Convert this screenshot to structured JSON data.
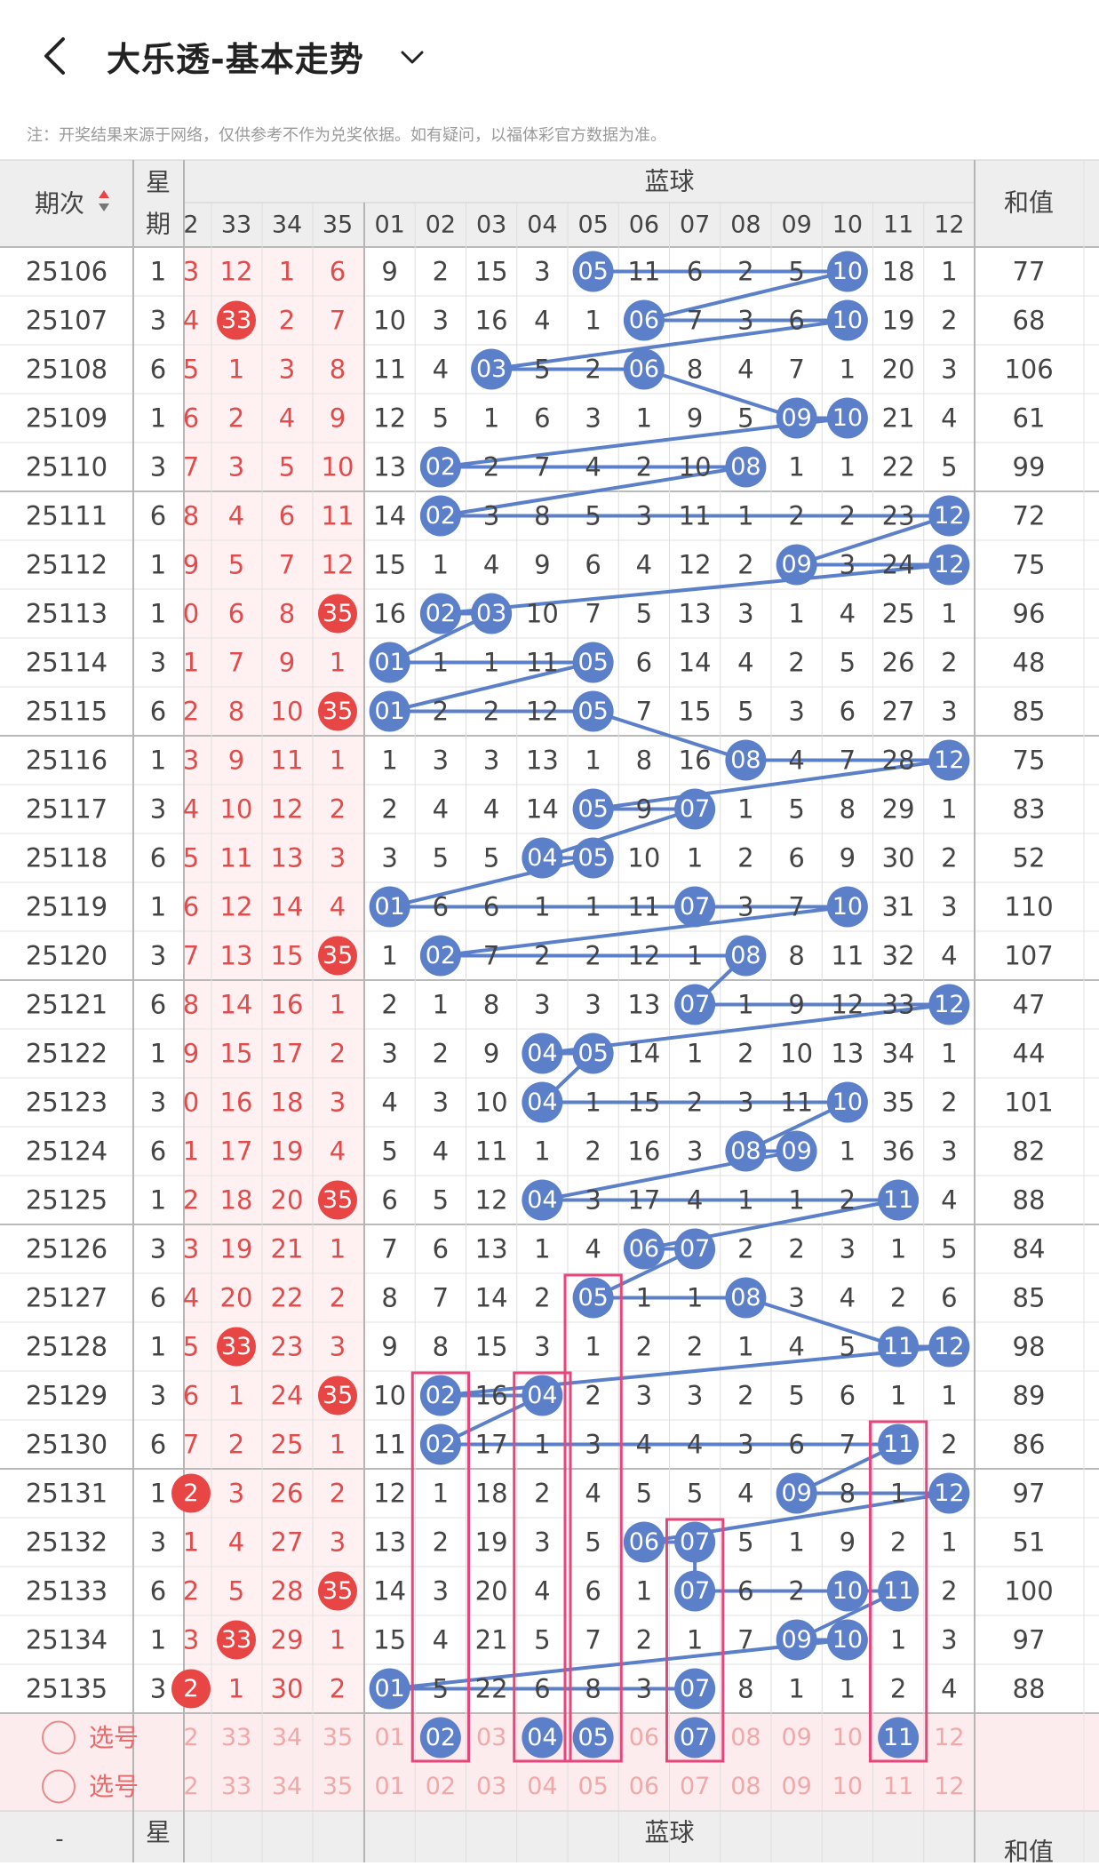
{
  "header": {
    "title": "大乐透-基本走势"
  },
  "notice": "注：开奖结果来源于网络，仅供参考不作为兑奖依据。如有疑问，以福体彩官方数据为准。",
  "table_headers": {
    "issue": "期次",
    "week_top": "星",
    "week_bottom": "期",
    "blue_group": "蓝球",
    "sum_label": "和值"
  },
  "front_col_labels": [
    "2",
    "33",
    "34",
    "35"
  ],
  "blue_col_labels": [
    "01",
    "02",
    "03",
    "04",
    "05",
    "06",
    "07",
    "08",
    "09",
    "10",
    "11",
    "12"
  ],
  "rows": [
    {
      "issue": "25106",
      "week": "1",
      "front": [
        "3",
        "12",
        "1",
        "6"
      ],
      "fhit": [
        0,
        0,
        0,
        0
      ],
      "blue": [
        "9",
        "2",
        "15",
        "3",
        "05",
        "11",
        "6",
        "2",
        "5",
        "10",
        "18",
        "1"
      ],
      "sum": "77"
    },
    {
      "issue": "25107",
      "week": "3",
      "front": [
        "4",
        "33",
        "2",
        "7"
      ],
      "fhit": [
        0,
        1,
        0,
        0
      ],
      "blue": [
        "10",
        "3",
        "16",
        "4",
        "1",
        "06",
        "7",
        "3",
        "6",
        "10",
        "19",
        "2"
      ],
      "sum": "68"
    },
    {
      "issue": "25108",
      "week": "6",
      "front": [
        "5",
        "1",
        "3",
        "8"
      ],
      "fhit": [
        0,
        0,
        0,
        0
      ],
      "blue": [
        "11",
        "4",
        "03",
        "5",
        "2",
        "06",
        "8",
        "4",
        "7",
        "1",
        "20",
        "3"
      ],
      "sum": "106"
    },
    {
      "issue": "25109",
      "week": "1",
      "front": [
        "6",
        "2",
        "4",
        "9"
      ],
      "fhit": [
        0,
        0,
        0,
        0
      ],
      "blue": [
        "12",
        "5",
        "1",
        "6",
        "3",
        "1",
        "9",
        "5",
        "09",
        "10",
        "21",
        "4"
      ],
      "sum": "61"
    },
    {
      "issue": "25110",
      "week": "3",
      "front": [
        "7",
        "3",
        "5",
        "10"
      ],
      "fhit": [
        0,
        0,
        0,
        0
      ],
      "blue": [
        "13",
        "02",
        "2",
        "7",
        "4",
        "2",
        "10",
        "08",
        "1",
        "1",
        "22",
        "5"
      ],
      "sum": "99"
    },
    {
      "issue": "25111",
      "week": "6",
      "front": [
        "8",
        "4",
        "6",
        "11"
      ],
      "fhit": [
        0,
        0,
        0,
        0
      ],
      "blue": [
        "14",
        "02",
        "3",
        "8",
        "5",
        "3",
        "11",
        "1",
        "2",
        "2",
        "23",
        "12"
      ],
      "sum": "72"
    },
    {
      "issue": "25112",
      "week": "1",
      "front": [
        "9",
        "5",
        "7",
        "12"
      ],
      "fhit": [
        0,
        0,
        0,
        0
      ],
      "blue": [
        "15",
        "1",
        "4",
        "9",
        "6",
        "4",
        "12",
        "2",
        "09",
        "3",
        "24",
        "12"
      ],
      "sum": "75"
    },
    {
      "issue": "25113",
      "week": "1",
      "front": [
        "0",
        "6",
        "8",
        "35"
      ],
      "fhit": [
        0,
        0,
        0,
        1
      ],
      "blue": [
        "16",
        "02",
        "03",
        "10",
        "7",
        "5",
        "13",
        "3",
        "1",
        "4",
        "25",
        "1"
      ],
      "sum": "96"
    },
    {
      "issue": "25114",
      "week": "3",
      "front": [
        "1",
        "7",
        "9",
        "1"
      ],
      "fhit": [
        0,
        0,
        0,
        0
      ],
      "blue": [
        "01",
        "1",
        "1",
        "11",
        "05",
        "6",
        "14",
        "4",
        "2",
        "5",
        "26",
        "2"
      ],
      "sum": "48"
    },
    {
      "issue": "25115",
      "week": "6",
      "front": [
        "2",
        "8",
        "10",
        "35"
      ],
      "fhit": [
        0,
        0,
        0,
        1
      ],
      "blue": [
        "01",
        "2",
        "2",
        "12",
        "05",
        "7",
        "15",
        "5",
        "3",
        "6",
        "27",
        "3"
      ],
      "sum": "85"
    },
    {
      "issue": "25116",
      "week": "1",
      "front": [
        "3",
        "9",
        "11",
        "1"
      ],
      "fhit": [
        0,
        0,
        0,
        0
      ],
      "blue": [
        "1",
        "3",
        "3",
        "13",
        "1",
        "8",
        "16",
        "08",
        "4",
        "7",
        "28",
        "12"
      ],
      "sum": "75"
    },
    {
      "issue": "25117",
      "week": "3",
      "front": [
        "4",
        "10",
        "12",
        "2"
      ],
      "fhit": [
        0,
        0,
        0,
        0
      ],
      "blue": [
        "2",
        "4",
        "4",
        "14",
        "05",
        "9",
        "07",
        "1",
        "5",
        "8",
        "29",
        "1"
      ],
      "sum": "83"
    },
    {
      "issue": "25118",
      "week": "6",
      "front": [
        "5",
        "11",
        "13",
        "3"
      ],
      "fhit": [
        0,
        0,
        0,
        0
      ],
      "blue": [
        "3",
        "5",
        "5",
        "04",
        "05",
        "10",
        "1",
        "2",
        "6",
        "9",
        "30",
        "2"
      ],
      "sum": "52"
    },
    {
      "issue": "25119",
      "week": "1",
      "front": [
        "6",
        "12",
        "14",
        "4"
      ],
      "fhit": [
        0,
        0,
        0,
        0
      ],
      "blue": [
        "01",
        "6",
        "6",
        "1",
        "1",
        "11",
        "07",
        "3",
        "7",
        "10",
        "31",
        "3"
      ],
      "sum": "110"
    },
    {
      "issue": "25120",
      "week": "3",
      "front": [
        "7",
        "13",
        "15",
        "35"
      ],
      "fhit": [
        0,
        0,
        0,
        1
      ],
      "blue": [
        "1",
        "02",
        "7",
        "2",
        "2",
        "12",
        "1",
        "08",
        "8",
        "11",
        "32",
        "4"
      ],
      "sum": "107"
    },
    {
      "issue": "25121",
      "week": "6",
      "front": [
        "8",
        "14",
        "16",
        "1"
      ],
      "fhit": [
        0,
        0,
        0,
        0
      ],
      "blue": [
        "2",
        "1",
        "8",
        "3",
        "3",
        "13",
        "07",
        "1",
        "9",
        "12",
        "33",
        "12"
      ],
      "sum": "47"
    },
    {
      "issue": "25122",
      "week": "1",
      "front": [
        "9",
        "15",
        "17",
        "2"
      ],
      "fhit": [
        0,
        0,
        0,
        0
      ],
      "blue": [
        "3",
        "2",
        "9",
        "04",
        "05",
        "14",
        "1",
        "2",
        "10",
        "13",
        "34",
        "1"
      ],
      "sum": "44"
    },
    {
      "issue": "25123",
      "week": "3",
      "front": [
        "0",
        "16",
        "18",
        "3"
      ],
      "fhit": [
        0,
        0,
        0,
        0
      ],
      "blue": [
        "4",
        "3",
        "10",
        "04",
        "1",
        "15",
        "2",
        "3",
        "11",
        "10",
        "35",
        "2"
      ],
      "sum": "101"
    },
    {
      "issue": "25124",
      "week": "6",
      "front": [
        "1",
        "17",
        "19",
        "4"
      ],
      "fhit": [
        0,
        0,
        0,
        0
      ],
      "blue": [
        "5",
        "4",
        "11",
        "1",
        "2",
        "16",
        "3",
        "08",
        "09",
        "1",
        "36",
        "3"
      ],
      "sum": "82"
    },
    {
      "issue": "25125",
      "week": "1",
      "front": [
        "2",
        "18",
        "20",
        "35"
      ],
      "fhit": [
        0,
        0,
        0,
        1
      ],
      "blue": [
        "6",
        "5",
        "12",
        "04",
        "3",
        "17",
        "4",
        "1",
        "1",
        "2",
        "11",
        "4"
      ],
      "sum": "88"
    },
    {
      "issue": "25126",
      "week": "3",
      "front": [
        "3",
        "19",
        "21",
        "1"
      ],
      "fhit": [
        0,
        0,
        0,
        0
      ],
      "blue": [
        "7",
        "6",
        "13",
        "1",
        "4",
        "06",
        "07",
        "2",
        "2",
        "3",
        "1",
        "5"
      ],
      "sum": "84"
    },
    {
      "issue": "25127",
      "week": "6",
      "front": [
        "4",
        "20",
        "22",
        "2"
      ],
      "fhit": [
        0,
        0,
        0,
        0
      ],
      "blue": [
        "8",
        "7",
        "14",
        "2",
        "05",
        "1",
        "1",
        "08",
        "3",
        "4",
        "2",
        "6"
      ],
      "sum": "85"
    },
    {
      "issue": "25128",
      "week": "1",
      "front": [
        "5",
        "33",
        "23",
        "3"
      ],
      "fhit": [
        0,
        1,
        0,
        0
      ],
      "blue": [
        "9",
        "8",
        "15",
        "3",
        "1",
        "2",
        "2",
        "1",
        "4",
        "5",
        "11",
        "12"
      ],
      "sum": "98"
    },
    {
      "issue": "25129",
      "week": "3",
      "front": [
        "6",
        "1",
        "24",
        "35"
      ],
      "fhit": [
        0,
        0,
        0,
        1
      ],
      "blue": [
        "10",
        "02",
        "16",
        "04",
        "2",
        "3",
        "3",
        "2",
        "5",
        "6",
        "1",
        "1"
      ],
      "sum": "89"
    },
    {
      "issue": "25130",
      "week": "6",
      "front": [
        "7",
        "2",
        "25",
        "1"
      ],
      "fhit": [
        0,
        0,
        0,
        0
      ],
      "blue": [
        "11",
        "02",
        "17",
        "1",
        "3",
        "4",
        "4",
        "3",
        "6",
        "7",
        "11",
        "2"
      ],
      "sum": "86"
    },
    {
      "issue": "25131",
      "week": "1",
      "front": [
        "2",
        "3",
        "26",
        "2"
      ],
      "fhit": [
        1,
        0,
        0,
        0
      ],
      "blue": [
        "12",
        "1",
        "18",
        "2",
        "4",
        "5",
        "5",
        "4",
        "09",
        "8",
        "1",
        "12"
      ],
      "sum": "97"
    },
    {
      "issue": "25132",
      "week": "3",
      "front": [
        "1",
        "4",
        "27",
        "3"
      ],
      "fhit": [
        0,
        0,
        0,
        0
      ],
      "blue": [
        "13",
        "2",
        "19",
        "3",
        "5",
        "06",
        "07",
        "5",
        "1",
        "9",
        "2",
        "1"
      ],
      "sum": "51"
    },
    {
      "issue": "25133",
      "week": "6",
      "front": [
        "2",
        "5",
        "28",
        "35"
      ],
      "fhit": [
        0,
        0,
        0,
        1
      ],
      "blue": [
        "14",
        "3",
        "20",
        "4",
        "6",
        "1",
        "07",
        "6",
        "2",
        "10",
        "11",
        "2"
      ],
      "sum": "100"
    },
    {
      "issue": "25134",
      "week": "1",
      "front": [
        "3",
        "33",
        "29",
        "1"
      ],
      "fhit": [
        0,
        1,
        0,
        0
      ],
      "blue": [
        "15",
        "4",
        "21",
        "5",
        "7",
        "2",
        "1",
        "7",
        "09",
        "10",
        "1",
        "3"
      ],
      "sum": "97"
    },
    {
      "issue": "25135",
      "week": "3",
      "front": [
        "2",
        "1",
        "30",
        "2"
      ],
      "fhit": [
        1,
        0,
        0,
        0
      ],
      "blue": [
        "01",
        "5",
        "22",
        "6",
        "8",
        "3",
        "07",
        "8",
        "1",
        "1",
        "2",
        "4"
      ],
      "sum": "88"
    }
  ],
  "select_rows": [
    {
      "label": "选号",
      "front": [
        "2",
        "33",
        "34",
        "35"
      ],
      "blue": [
        "01",
        "02",
        "03",
        "04",
        "05",
        "06",
        "07",
        "08",
        "09",
        "10",
        "11",
        "12"
      ],
      "selected": [
        "02",
        "04",
        "05",
        "07",
        "11"
      ]
    },
    {
      "label": "选号",
      "front": [
        "2",
        "33",
        "34",
        "35"
      ],
      "blue": [
        "01",
        "02",
        "03",
        "04",
        "05",
        "06",
        "07",
        "08",
        "09",
        "10",
        "11",
        "12"
      ],
      "selected": []
    }
  ],
  "highlight_columns": [
    "02",
    "04",
    "05",
    "07",
    "11"
  ],
  "colors": {
    "blue_ball": "#5b7fc9",
    "red_ball": "#e84545",
    "red_text": "#e24b4b",
    "highlight_box": "#e8457a",
    "line": "#5b7fc9",
    "grid": "#cfcfcf",
    "select_bg": "#fdecee",
    "front_bg": "#fff1f1"
  }
}
